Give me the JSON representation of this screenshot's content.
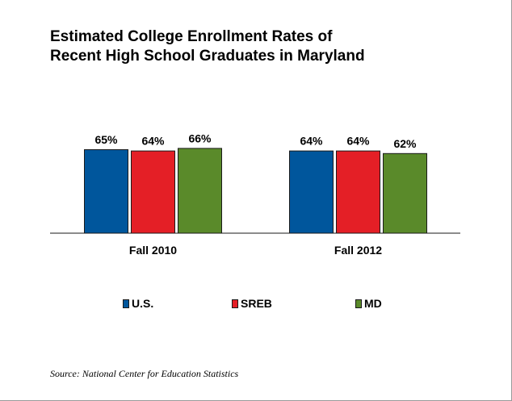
{
  "chart_data": {
    "type": "bar",
    "title": [
      "Estimated College Enrollment Rates of",
      "Recent High School Graduates in Maryland"
    ],
    "categories": [
      "Fall 2010",
      "Fall 2012"
    ],
    "series": [
      {
        "name": "U.S.",
        "values": [
          65,
          64
        ],
        "labels": [
          "65%",
          "64%"
        ],
        "color": "#00569c"
      },
      {
        "name": "SREB",
        "values": [
          64,
          64
        ],
        "labels": [
          "64%",
          "64%"
        ],
        "color": "#e41f26"
      },
      {
        "name": "MD",
        "values": [
          66,
          62
        ],
        "labels": [
          "66%",
          "62%"
        ],
        "color": "#5a8a2a"
      }
    ],
    "ylim": [
      0,
      100
    ],
    "grid": false,
    "legend_position": "bottom"
  },
  "source": "Source: National Center for Education Statistics",
  "colors": {
    "bar_border": "#1a1a1a",
    "axis": "#1a1a1a"
  }
}
